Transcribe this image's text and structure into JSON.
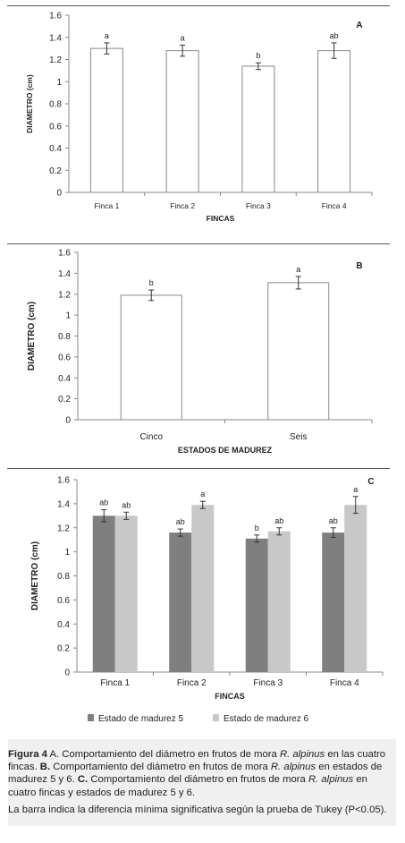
{
  "chart_data": [
    {
      "id": "A",
      "type": "bar",
      "panel_label": "A",
      "xlabel": "FINCAS",
      "ylabel": "DIAMETRO (cm)",
      "ylim": [
        0,
        1.6
      ],
      "yticks": [
        "0",
        "0.2",
        "0.4",
        "0.6",
        "0.8",
        "1",
        "1.2",
        "1.4",
        "1.6"
      ],
      "categories": [
        "Finca 1",
        "Finca 2",
        "Finca 3",
        "Finca 4"
      ],
      "series": [
        {
          "values": [
            1.3,
            1.28,
            1.14,
            1.28
          ],
          "errors": [
            0.05,
            0.05,
            0.03,
            0.07
          ],
          "letters": [
            "a",
            "a",
            "b",
            "ab"
          ],
          "color": "#ffffff"
        }
      ]
    },
    {
      "id": "B",
      "type": "bar",
      "panel_label": "B",
      "xlabel": "ESTADOS DE MADUREZ",
      "ylabel": "DIAMETRO (cm)",
      "ylim": [
        0,
        1.6
      ],
      "yticks": [
        "0",
        "0.2",
        "0.4",
        "0.6",
        "0.8",
        "1",
        "1.2",
        "1.4",
        "1.6"
      ],
      "categories": [
        "Cinco",
        "Seis"
      ],
      "series": [
        {
          "values": [
            1.19,
            1.31
          ],
          "errors": [
            0.05,
            0.06
          ],
          "letters": [
            "b",
            "a"
          ],
          "color": "#ffffff"
        }
      ]
    },
    {
      "id": "C",
      "type": "bar",
      "panel_label": "C",
      "xlabel": "FINCAS",
      "ylabel": "DIAMETRO (cm)",
      "ylim": [
        0,
        1.6
      ],
      "yticks": [
        "0",
        "0.2",
        "0.4",
        "0.6",
        "0.8",
        "1",
        "1.2",
        "1.4",
        "1.6"
      ],
      "categories": [
        "Finca 1",
        "Finca 2",
        "Finca 3",
        "Finca 4"
      ],
      "series": [
        {
          "name": "Estado de madurez 5",
          "values": [
            1.3,
            1.16,
            1.11,
            1.16
          ],
          "errors": [
            0.05,
            0.03,
            0.03,
            0.04
          ],
          "letters": [
            "ab",
            "ab",
            "b",
            "ab"
          ],
          "color": "#7f7f7f"
        },
        {
          "name": "Estado de madurez 6",
          "values": [
            1.3,
            1.39,
            1.17,
            1.39
          ],
          "errors": [
            0.03,
            0.03,
            0.03,
            0.07
          ],
          "letters": [
            "ab",
            "a",
            "ab",
            "a"
          ],
          "color": "#c8c8c8"
        }
      ],
      "legend": "bottom"
    }
  ],
  "caption": {
    "fig_label": "Figura 4",
    "a_label": "A.",
    "a_text_1": "Comportamiento del diámetro en frutos de mora",
    "species": "R. alpinus",
    "a_text_2": "en las cuatro fincas.",
    "b_label": "B.",
    "b_text_1": "Comportamiento del diámetro en frutos de mora",
    "b_text_2": "en estados de madurez 5 y 6.",
    "c_label": "C.",
    "c_text_1": "Comportamiento del diámetro en frutos de mora",
    "c_text_2": "en cuatro fincas y estados de madurez 5 y 6.",
    "note": "La barra indica la diferencia mínima significativa según la prueba de Tukey (P<0.05)."
  }
}
